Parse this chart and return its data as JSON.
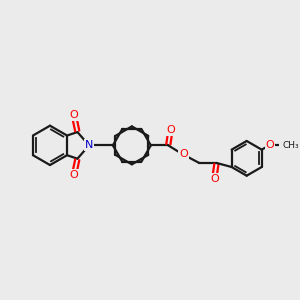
{
  "bg_color": "#ebebeb",
  "bond_color": "#1a1a1a",
  "oxygen_color": "#ff0000",
  "nitrogen_color": "#0000cc",
  "figsize": [
    3.0,
    3.0
  ],
  "dpi": 100,
  "xlim": [
    0,
    12
  ],
  "ylim": [
    0,
    10
  ]
}
